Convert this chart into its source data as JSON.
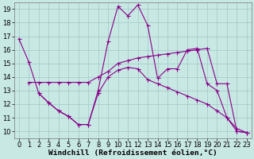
{
  "background_color": "#c8e8e4",
  "line_color": "#880088",
  "grid_color": "#a0c8c4",
  "xlabel": "Windchill (Refroidissement éolien,°C)",
  "xlabel_fontsize": 6.8,
  "tick_fontsize": 6.0,
  "xlim": [
    -0.5,
    23.5
  ],
  "ylim": [
    9.5,
    19.5
  ],
  "yticks": [
    10,
    11,
    12,
    13,
    14,
    15,
    16,
    17,
    18,
    19
  ],
  "xticks": [
    0,
    1,
    2,
    3,
    4,
    5,
    6,
    7,
    8,
    9,
    10,
    11,
    12,
    13,
    14,
    15,
    16,
    17,
    18,
    19,
    20,
    21,
    22,
    23
  ],
  "series": [
    {
      "comment": "Line 1: jagged - starts high, peaks at 10-12, drops",
      "x": [
        0,
        1,
        2,
        3,
        4,
        5,
        6,
        7,
        8,
        9,
        10,
        11,
        12,
        13,
        14,
        15,
        16,
        17,
        18,
        19,
        20,
        21,
        22,
        23
      ],
      "y": [
        16.8,
        15.1,
        12.8,
        12.1,
        11.5,
        11.1,
        10.5,
        10.5,
        13.0,
        16.6,
        19.2,
        18.5,
        19.3,
        17.8,
        13.9,
        14.6,
        14.6,
        16.0,
        16.1,
        13.5,
        13.0,
        11.0,
        10.0,
        9.9
      ]
    },
    {
      "comment": "Line 2: gradual rise - starts at x=1, slowly increases then drops at end",
      "x": [
        1,
        2,
        3,
        4,
        5,
        6,
        7,
        8,
        9,
        10,
        11,
        12,
        13,
        14,
        15,
        16,
        17,
        18,
        19,
        20,
        21,
        22,
        23
      ],
      "y": [
        13.6,
        13.6,
        13.6,
        13.6,
        13.6,
        13.6,
        13.6,
        14.0,
        14.4,
        15.0,
        15.2,
        15.4,
        15.5,
        15.6,
        15.7,
        15.8,
        15.9,
        16.0,
        16.1,
        13.5,
        13.5,
        10.0,
        9.9
      ]
    },
    {
      "comment": "Line 3: lower line - starts x=2, dips, then gradually declines",
      "x": [
        2,
        3,
        4,
        5,
        6,
        7,
        8,
        9,
        10,
        11,
        12,
        13,
        14,
        15,
        16,
        17,
        18,
        19,
        20,
        21,
        22,
        23
      ],
      "y": [
        12.8,
        12.1,
        11.5,
        11.1,
        10.5,
        10.5,
        12.8,
        14.0,
        14.5,
        14.7,
        14.6,
        13.8,
        13.5,
        13.2,
        12.9,
        12.6,
        12.3,
        12.0,
        11.5,
        11.0,
        10.2,
        9.9
      ]
    }
  ]
}
